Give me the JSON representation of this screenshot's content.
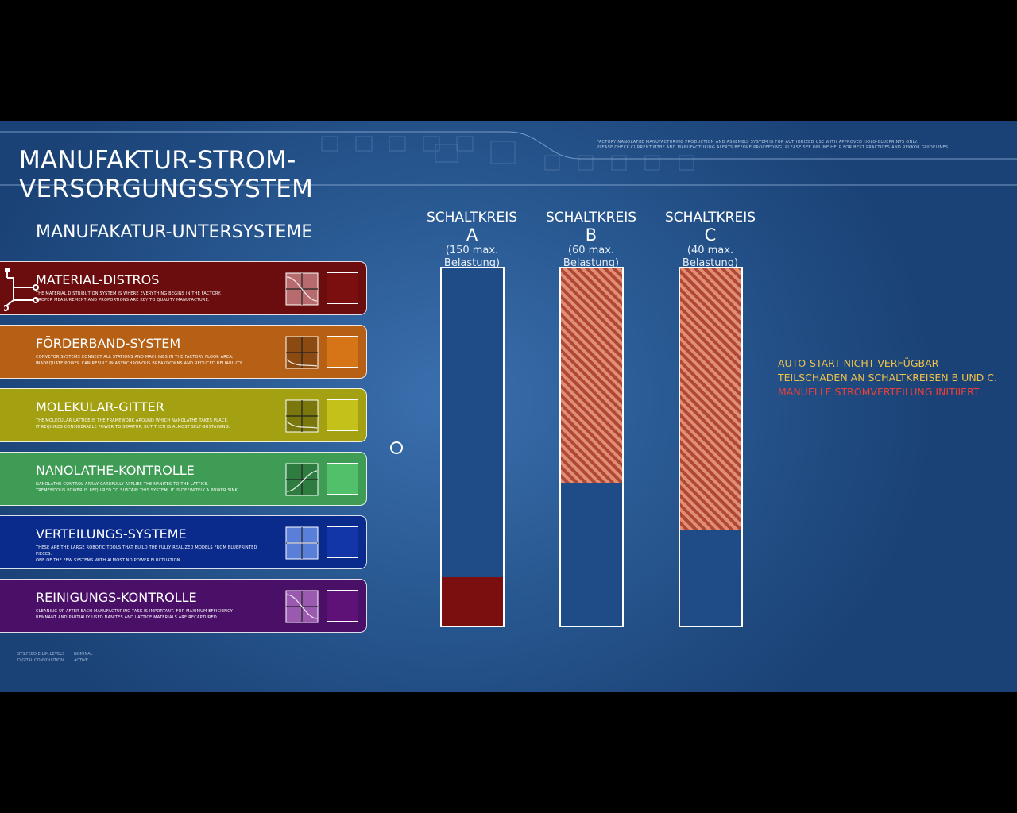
{
  "header": {
    "title_line1": "MANUFAKTUR-STROM-",
    "title_line2": "VERSORGUNGSSYSTEM",
    "fine_print_line1": "Factory nanolathe manufacturing production and assembly system is for authorized use with approved holo-blueprints only.",
    "fine_print_line2": "Please check current MTBF and manufacturing alerts before proceeding. Please see online help for best practices and Rekkor guidelines."
  },
  "subsystems_title": "MANUFAKATUR-UNTERSYSTEME",
  "subsystems": [
    {
      "name": "MATERIAL-DISTROS",
      "desc1": "The material distribution system is where everything begins in the factory.",
      "desc2": "Proper measurement and proportions are key to quality manufacture.",
      "color": "#6b0d0e",
      "swatch": "#7b0f10",
      "graph": "#b86b6e",
      "curve": "down"
    },
    {
      "name": "FÖRDERBAND-SYSTEM",
      "desc1": "Conveyor systems connect all stations and machines in the factory floor area.",
      "desc2": "Inadequate power can result in asynchronous breakdowns and reduced reliability.",
      "color": "#b56015",
      "swatch": "#d67418",
      "graph": "#8b4a12",
      "curve": "low"
    },
    {
      "name": "MOLEKULAR-GITTER",
      "desc1": "The molecular lattice is the framework around which nanolathe takes place.",
      "desc2": "It requires considerable power to startup, but then is almost self-sustaining.",
      "color": "#a3a112",
      "swatch": "#c4c21a",
      "graph": "#7a780c",
      "curve": "low2"
    },
    {
      "name": "NANOLATHE-KONTROLLE",
      "desc1": "Nanolathe control array carefully applies the nanites to the lattice.",
      "desc2": "Tremendous power is required to sustain this system. It is definitely a power sink.",
      "color": "#3f9c55",
      "swatch": "#52c06a",
      "graph": "#2e7c40",
      "curve": "up"
    },
    {
      "name": "VERTEILUNGS-SYSTEME",
      "desc1": "These are the large robotic tools that build the fully realized models from blueprinted pieces.",
      "desc2": "One of the few systems with almost no power fluctuation.",
      "color": "#0a2a8c",
      "swatch": "#1236a8",
      "graph": "#5a7fd8",
      "curve": "flat"
    },
    {
      "name": "REINIGUNGS-KONTROLLE",
      "desc1": "Cleaning up after each manufacturing task is important. For maximum efficiency",
      "desc2": "Remnant and partially used nanites and lattice materials are recaptured.",
      "color": "#4a0f66",
      "swatch": "#5e1278",
      "graph": "#9a5ab0",
      "curve": "down"
    }
  ],
  "footer": {
    "left_line1": "SYS.FEED E-LIM.LEVELS",
    "left_line2": "DIGITAL CONVOLUTION",
    "right_line1": "NOMINAL",
    "right_line2": "ACTIVE"
  },
  "circuits": [
    {
      "label": "SCHALTKREIS",
      "letter": "A",
      "note_line1": "(150 max.",
      "note_line2": "Belastung)",
      "fill_fraction": 0.135,
      "fill_style": "solid"
    },
    {
      "label": "SCHALTKREIS",
      "letter": "B",
      "note_line1": "(60 max.",
      "note_line2": "Belastung)",
      "fill_fraction": 0.6,
      "fill_style": "hatched"
    },
    {
      "label": "SCHALTKREIS",
      "letter": "C",
      "note_line1": "(40 max.",
      "note_line2": "Belastung)",
      "fill_fraction": 0.73,
      "fill_style": "hatched"
    }
  ],
  "status": {
    "line1": "AUTO-START NICHT VERFÜGBAR",
    "line2": "TEILSCHADEN AN SCHALTKREISEN B UND C.",
    "line3": "MANUELLE STROMVERTEILUNG INITIIERT"
  },
  "colors": {
    "background": "#2a5a93",
    "warning": "#f0c24a",
    "alert": "#e8403a"
  }
}
